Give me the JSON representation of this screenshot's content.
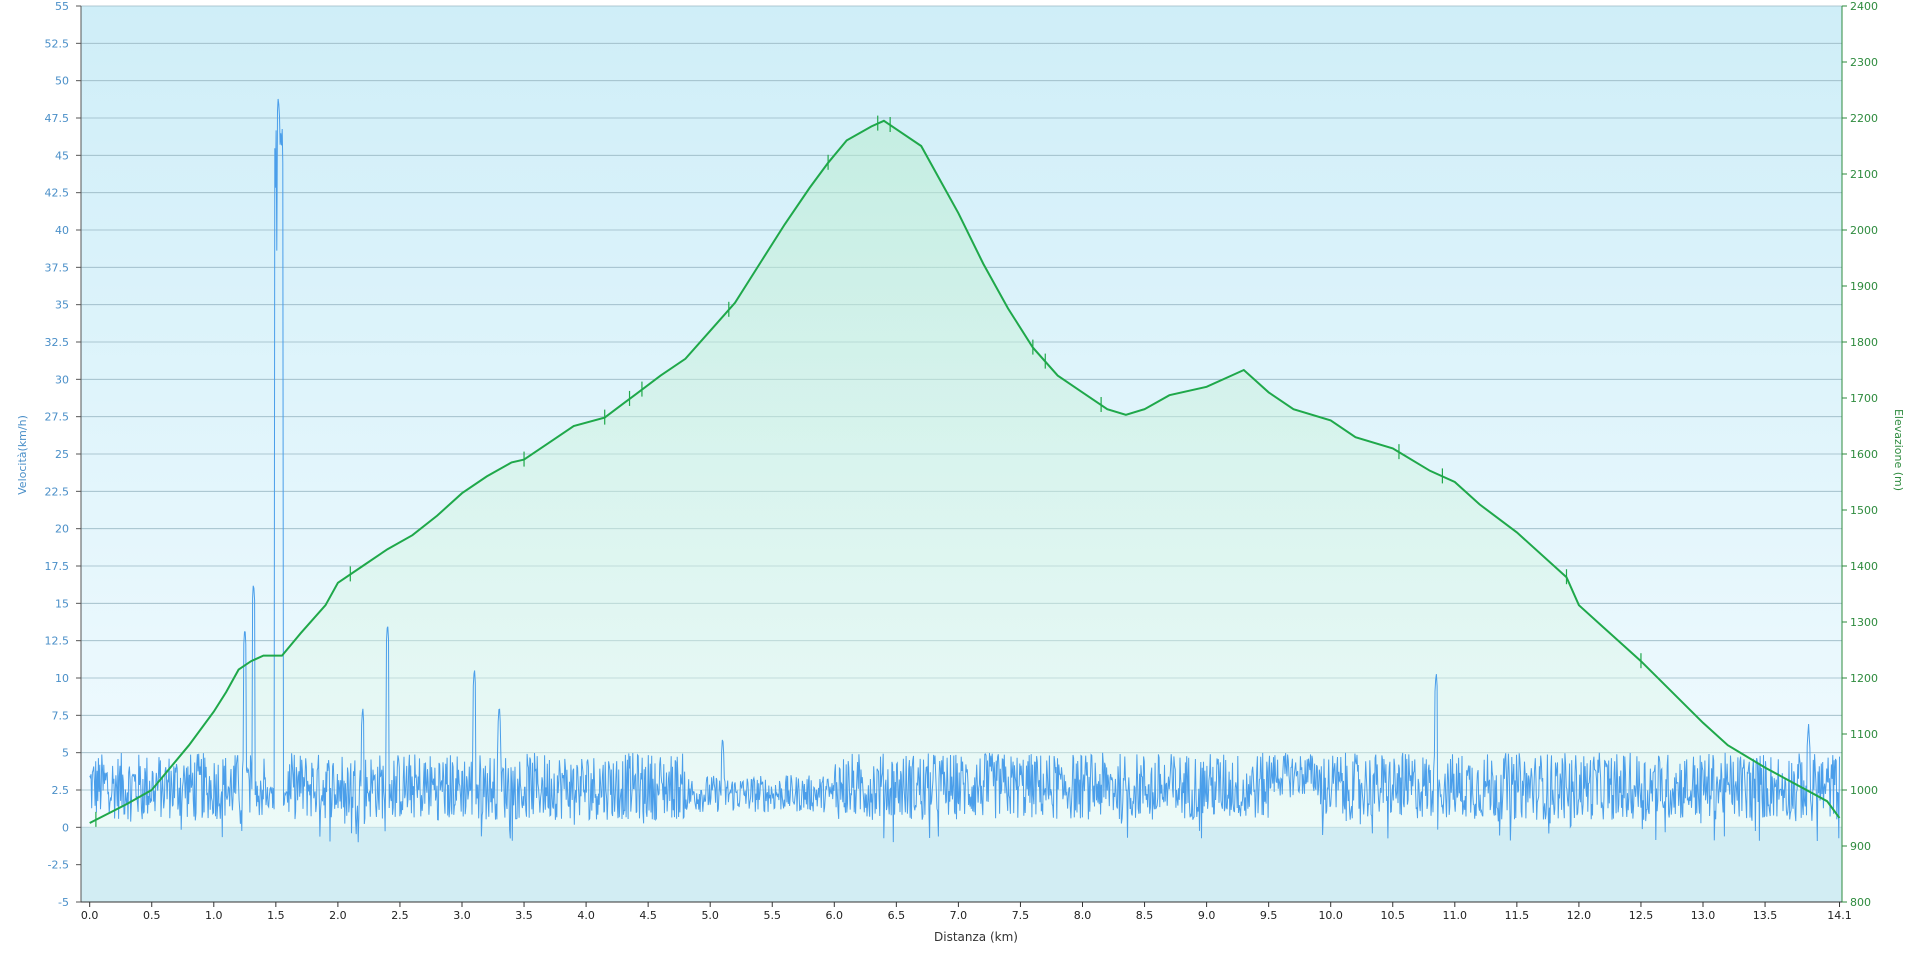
{
  "chart_data": {
    "type": "line",
    "xlabel": "Distanza  (km)",
    "xlim": [
      -0.07,
      14.12
    ],
    "xticks": [
      "0.0",
      "0.5",
      "1.0",
      "1.5",
      "2.0",
      "2.5",
      "3.0",
      "3.5",
      "4.0",
      "4.5",
      "5.0",
      "5.5",
      "6.0",
      "6.5",
      "7.0",
      "7.5",
      "8.0",
      "8.5",
      "9.0",
      "9.5",
      "10.0",
      "10.5",
      "11.0",
      "11.5",
      "12.0",
      "12.5",
      "13.0",
      "13.5",
      "14.1"
    ],
    "y_left": {
      "label": "Velocità(km/h)",
      "ylim": [
        -5,
        55
      ],
      "ticks": [
        "-5",
        "-2.5",
        "0",
        "2.5",
        "5",
        "7.5",
        "10",
        "12.5",
        "15",
        "17.5",
        "20",
        "22.5",
        "25",
        "27.5",
        "30",
        "32.5",
        "35",
        "37.5",
        "40",
        "42.5",
        "45",
        "47.5",
        "50",
        "52.5",
        "55"
      ]
    },
    "y_right": {
      "label": "Elevazione (m)",
      "ylim": [
        800,
        2400
      ],
      "ticks": [
        "800",
        "900",
        "1000",
        "1100",
        "1200",
        "1300",
        "1400",
        "1500",
        "1600",
        "1700",
        "1800",
        "1900",
        "2000",
        "2100",
        "2200",
        "2300",
        "2400"
      ]
    },
    "grid": true,
    "colors": {
      "speed": "#4a9eea",
      "elevation": "#1fa84a",
      "left_axis": "#4a8fc8",
      "right_axis": "#2e8b3e",
      "bg_top": "#cfeef8",
      "bg_bottom": "#f2fbff",
      "zero_band": "#d5eef3"
    },
    "series": [
      {
        "name": "Elevazione (m)",
        "axis": "right",
        "x": [
          0.0,
          0.3,
          0.5,
          0.8,
          1.0,
          1.1,
          1.2,
          1.3,
          1.4,
          1.55,
          1.7,
          1.9,
          2.0,
          2.2,
          2.4,
          2.6,
          2.8,
          3.0,
          3.2,
          3.4,
          3.5,
          3.7,
          3.9,
          4.15,
          4.3,
          4.6,
          4.8,
          5.0,
          5.2,
          5.4,
          5.6,
          5.8,
          5.95,
          6.1,
          6.3,
          6.4,
          6.5,
          6.7,
          6.85,
          7.0,
          7.2,
          7.4,
          7.6,
          7.8,
          8.0,
          8.2,
          8.35,
          8.5,
          8.7,
          9.0,
          9.2,
          9.3,
          9.5,
          9.7,
          10.0,
          10.2,
          10.5,
          10.8,
          11.0,
          11.2,
          11.5,
          11.9,
          12.0,
          12.2,
          12.5,
          13.0,
          13.2,
          13.5,
          14.0,
          14.1
        ],
        "y": [
          941,
          975,
          1000,
          1080,
          1140,
          1175,
          1215,
          1230,
          1240,
          1240,
          1280,
          1330,
          1370,
          1400,
          1430,
          1455,
          1490,
          1530,
          1560,
          1585,
          1590,
          1620,
          1650,
          1665,
          1690,
          1740,
          1770,
          1820,
          1870,
          1940,
          2010,
          2075,
          2120,
          2160,
          2185,
          2195,
          2180,
          2150,
          2090,
          2030,
          1940,
          1860,
          1790,
          1740,
          1710,
          1680,
          1670,
          1680,
          1705,
          1720,
          1740,
          1750,
          1710,
          1680,
          1660,
          1630,
          1610,
          1570,
          1550,
          1510,
          1460,
          1380,
          1330,
          1290,
          1230,
          1120,
          1080,
          1040,
          980,
          950
        ]
      },
      {
        "name": "Velocità(km/h)",
        "axis": "left",
        "peaks": [
          {
            "x": 1.25,
            "y": 13.5
          },
          {
            "x": 1.32,
            "y": 16.5
          },
          {
            "x": 1.5,
            "y": 38.5
          },
          {
            "x": 1.52,
            "y": 49
          },
          {
            "x": 1.54,
            "y": 46.5
          },
          {
            "x": 2.2,
            "y": 8.2
          },
          {
            "x": 2.4,
            "y": 13.8
          },
          {
            "x": 3.1,
            "y": 10.8
          },
          {
            "x": 3.3,
            "y": 8.3
          },
          {
            "x": 5.1,
            "y": 6.2
          },
          {
            "x": 10.85,
            "y": 10.5
          },
          {
            "x": 13.85,
            "y": 7
          }
        ],
        "typical_range": [
          0,
          5.5
        ]
      }
    ]
  }
}
